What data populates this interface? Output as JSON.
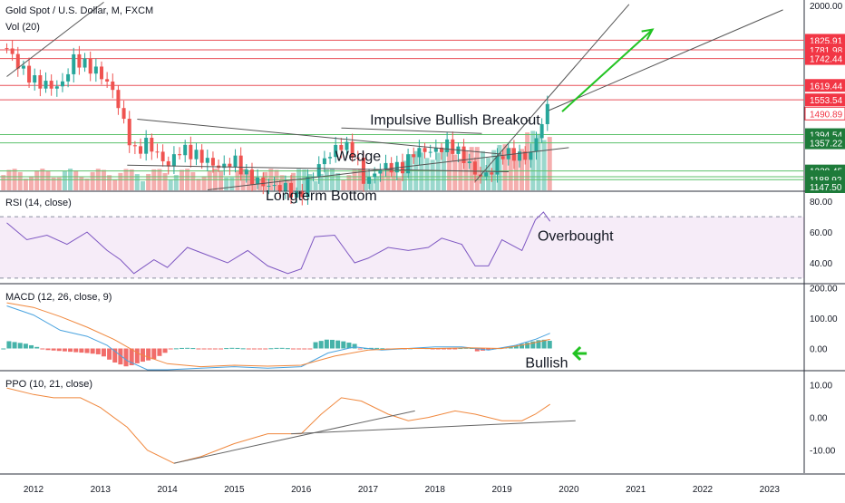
{
  "chart_data": {
    "type": "line",
    "x_axis": {
      "tick_labels": [
        "2012",
        "2013",
        "2014",
        "2015",
        "2016",
        "2017",
        "2018",
        "2019",
        "2020",
        "2021",
        "2022",
        "2023"
      ]
    },
    "panels": [
      {
        "id": "price",
        "label": "Gold Spot / U.S. Dollar, M, FXCM",
        "volume_label": "Vol (20)",
        "ylim": [
          1140,
          2010
        ],
        "y_tick_labels": [
          {
            "text": "2000.00",
            "value": 2000,
            "highlight": false
          },
          {
            "text": "1825.91",
            "value": 1825.91,
            "highlight": true
          },
          {
            "text": "1781.98",
            "value": 1781.98,
            "highlight": true
          },
          {
            "text": "1742.44",
            "value": 1742.44,
            "highlight": true
          },
          {
            "text": "1619.44",
            "value": 1619.44,
            "highlight": true
          },
          {
            "text": "1553.54",
            "value": 1553.54,
            "highlight": true
          },
          {
            "text": "1490.89",
            "value": 1490.89,
            "highlight": false,
            "box": "#ffffff"
          },
          {
            "text": "1394.54",
            "value": 1394.54,
            "highlight": false,
            "box": "#1e7b3a"
          },
          {
            "text": "1357.22",
            "value": 1357.22,
            "highlight": false,
            "box": "#1e7b3a"
          },
          {
            "text": "1228.45",
            "value": 1228.45,
            "highlight": false,
            "box": "#1e7b3a"
          },
          {
            "text": "1202.10",
            "value": 1202.1,
            "highlight": false,
            "box": "#1e7b3a"
          },
          {
            "text": "1188.92",
            "value": 1188.92,
            "highlight": false,
            "box": "#1e7b3a"
          },
          {
            "text": "1147.50",
            "value": 1147.5,
            "highlight": false,
            "box": "#1e7b3a"
          }
        ],
        "resistance_levels": [
          1825.91,
          1781.98,
          1742.44,
          1619.44,
          1553.54
        ],
        "support_levels": [
          1394.54,
          1357.22,
          1228.45,
          1202.1,
          1188.92
        ],
        "close_series": {
          "x": [
            2011.6,
            2011.8,
            2012.0,
            2012.2,
            2012.4,
            2012.6,
            2012.8,
            2013.0,
            2013.2,
            2013.4,
            2013.5,
            2013.7,
            2014.0,
            2014.2,
            2014.5,
            2014.8,
            2015.0,
            2015.2,
            2015.5,
            2015.8,
            2015.95,
            2016.1,
            2016.3,
            2016.6,
            2016.8,
            2016.95,
            2017.2,
            2017.5,
            2017.7,
            2018.0,
            2018.2,
            2018.4,
            2018.6,
            2018.7,
            2018.85,
            2019.0,
            2019.2,
            2019.4,
            2019.55,
            2019.65,
            2019.72
          ],
          "values": [
            1790,
            1700,
            1640,
            1620,
            1610,
            1740,
            1710,
            1670,
            1590,
            1400,
            1310,
            1360,
            1250,
            1330,
            1290,
            1240,
            1280,
            1200,
            1160,
            1150,
            1100,
            1180,
            1270,
            1350,
            1310,
            1170,
            1250,
            1240,
            1320,
            1320,
            1350,
            1300,
            1220,
            1200,
            1230,
            1310,
            1300,
            1290,
            1400,
            1520,
            1505
          ]
        },
        "annotations": [
          {
            "text": "Impulsive Bullish Breakout",
            "x": 2018.3,
            "y": 1440
          },
          {
            "text": "Wedge",
            "x": 2016.85,
            "y": 1275
          },
          {
            "text": "Longterm Bottom",
            "x": 2016.3,
            "y": 1095
          }
        ]
      },
      {
        "id": "rsi",
        "label": "RSI (14, close)",
        "ylim": [
          27,
          86
        ],
        "y_tick_labels": [
          {
            "text": "80.00",
            "value": 80
          },
          {
            "text": "60.00",
            "value": 60
          },
          {
            "text": "40.00",
            "value": 40
          }
        ],
        "band": [
          30,
          70
        ],
        "series": {
          "x": [
            2011.6,
            2011.9,
            2012.2,
            2012.5,
            2012.8,
            2013.1,
            2013.3,
            2013.5,
            2013.8,
            2014.0,
            2014.3,
            2014.6,
            2014.9,
            2015.2,
            2015.5,
            2015.8,
            2016.0,
            2016.2,
            2016.5,
            2016.8,
            2017.0,
            2017.3,
            2017.6,
            2017.9,
            2018.1,
            2018.4,
            2018.6,
            2018.8,
            2019.0,
            2019.3,
            2019.5,
            2019.62,
            2019.72
          ],
          "values": [
            66,
            55,
            58,
            52,
            60,
            48,
            42,
            33,
            42,
            37,
            50,
            45,
            40,
            48,
            38,
            33,
            36,
            57,
            58,
            40,
            43,
            50,
            48,
            50,
            56,
            52,
            38,
            38,
            55,
            48,
            68,
            73,
            67
          ]
        },
        "annotations": [
          {
            "text": "Overbought",
            "x": 2020.1,
            "y": 58
          }
        ]
      },
      {
        "id": "macd",
        "label": "MACD (12, 26, close, 9)",
        "ylim": [
          -70,
          210
        ],
        "y_tick_labels": [
          {
            "text": "200.00",
            "value": 200
          },
          {
            "text": "100.00",
            "value": 100
          },
          {
            "text": "0.00",
            "value": 0
          }
        ],
        "macd_line": {
          "x": [
            2011.6,
            2012.0,
            2012.4,
            2012.8,
            2013.1,
            2013.4,
            2013.7,
            2014.0,
            2014.5,
            2015.0,
            2015.5,
            2016.0,
            2016.4,
            2016.8,
            2017.2,
            2017.6,
            2018.0,
            2018.4,
            2018.8,
            2019.2,
            2019.5,
            2019.72
          ],
          "values": [
            140,
            110,
            60,
            40,
            10,
            -40,
            -70,
            -70,
            -65,
            -60,
            -65,
            -60,
            -15,
            5,
            -5,
            0,
            5,
            5,
            -5,
            10,
            30,
            50
          ]
        },
        "signal_line": {
          "x": [
            2011.6,
            2012.0,
            2012.4,
            2012.8,
            2013.2,
            2013.6,
            2014.0,
            2014.5,
            2015.0,
            2015.5,
            2016.0,
            2016.5,
            2017.0,
            2017.5,
            2018.0,
            2018.5,
            2019.0,
            2019.4,
            2019.72
          ],
          "values": [
            150,
            135,
            105,
            70,
            30,
            -20,
            -50,
            -60,
            -55,
            -58,
            -55,
            -25,
            -5,
            0,
            0,
            2,
            0,
            15,
            30
          ]
        },
        "histogram": {
          "x": [
            2011.6,
            2011.9,
            2012.2,
            2012.5,
            2012.8,
            2013.0,
            2013.2,
            2013.4,
            2013.6,
            2013.8,
            2014.0,
            2016.2,
            2016.4,
            2016.6,
            2016.8,
            2018.6,
            2018.8,
            2019.2,
            2019.4,
            2019.6,
            2019.72
          ],
          "values": [
            25,
            15,
            -5,
            -10,
            -15,
            -20,
            -45,
            -60,
            -45,
            -35,
            -10,
            20,
            30,
            25,
            15,
            -10,
            -5,
            10,
            20,
            30,
            25
          ]
        },
        "annotations": [
          {
            "text": "Bullish",
            "x": 2019.35,
            "y": -45
          }
        ]
      },
      {
        "id": "ppo",
        "label": "PPO (10, 21, close)",
        "ylim": [
          -17,
          14
        ],
        "y_tick_labels": [
          {
            "text": "10.00",
            "value": 10
          },
          {
            "text": "0.00",
            "value": 0
          },
          {
            "text": "-10.00",
            "value": -10
          }
        ],
        "series": {
          "x": [
            2011.6,
            2012.0,
            2012.3,
            2012.7,
            2013.0,
            2013.4,
            2013.7,
            2014.1,
            2014.5,
            2015.0,
            2015.5,
            2016.0,
            2016.3,
            2016.6,
            2016.9,
            2017.3,
            2017.6,
            2017.9,
            2018.3,
            2018.6,
            2019.0,
            2019.3,
            2019.5,
            2019.72
          ],
          "values": [
            9,
            7,
            6,
            6,
            3,
            -3,
            -10,
            -14,
            -12,
            -8,
            -5,
            -5,
            1,
            6,
            5,
            1,
            -1,
            0,
            2,
            1,
            -1,
            -1,
            1,
            4
          ]
        }
      }
    ]
  }
}
